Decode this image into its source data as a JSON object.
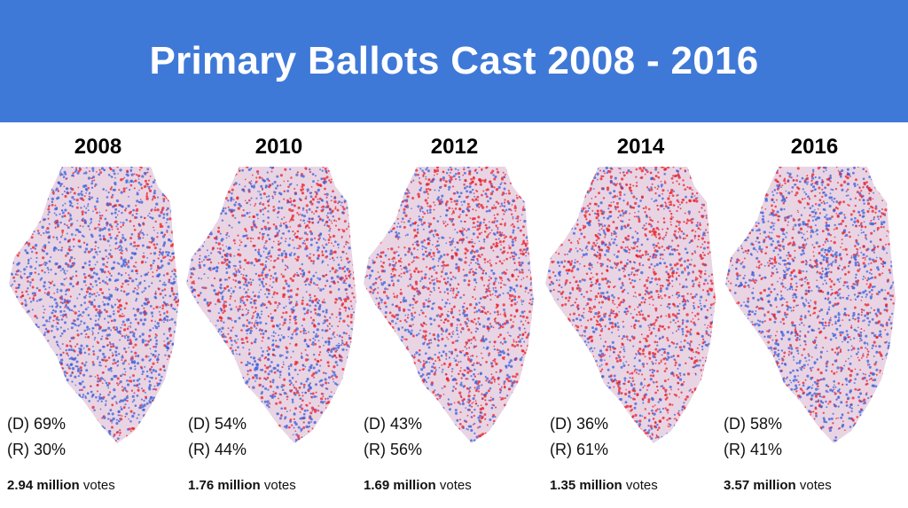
{
  "header": {
    "title": "Primary Ballots Cast 2008 - 2016"
  },
  "colors": {
    "header_bg": "#3f79d8",
    "democrat": "#3a5fd9",
    "republican": "#e8202a"
  },
  "panels": [
    {
      "year": "2008",
      "dem": "(D) 69%",
      "rep": "(R) 30%",
      "votes_bold": "2.94 million",
      "votes_suffix": " votes",
      "dem_share": 69,
      "rep_share": 30
    },
    {
      "year": "2010",
      "dem": "(D) 54%",
      "rep": "(R) 44%",
      "votes_bold": "1.76 million",
      "votes_suffix": " votes",
      "dem_share": 54,
      "rep_share": 44
    },
    {
      "year": "2012",
      "dem": "(D) 43%",
      "rep": "(R) 56%",
      "votes_bold": "1.69 million",
      "votes_suffix": " votes",
      "dem_share": 43,
      "rep_share": 56
    },
    {
      "year": "2014",
      "dem": "(D) 36%",
      "rep": "(R) 61%",
      "votes_bold": "1.35 million",
      "votes_suffix": " votes",
      "dem_share": 36,
      "rep_share": 61
    },
    {
      "year": "2016",
      "dem": "(D) 58%",
      "rep": "(R) 41%",
      "votes_bold": "3.57 million",
      "votes_suffix": " votes",
      "dem_share": 58,
      "rep_share": 41
    }
  ]
}
